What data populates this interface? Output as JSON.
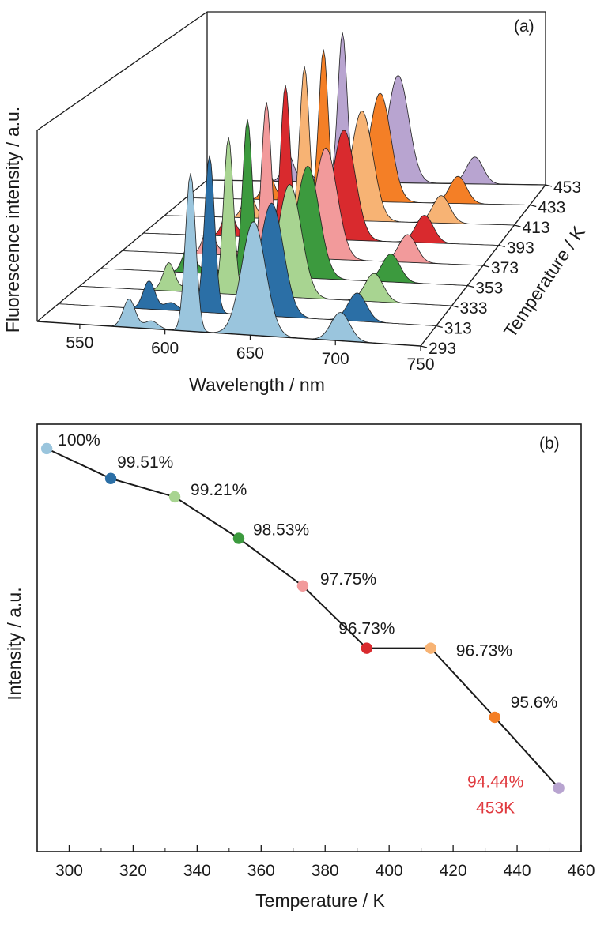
{
  "chart_data": [
    {
      "type": "area",
      "panel_label": "(a)",
      "xlabel": "Wavelength / nm",
      "ylabel": "Fluorescence intensity / a.u.",
      "zlabel": "Temperature / K",
      "xlim": [
        525,
        750
      ],
      "x_ticks": [
        "550",
        "600",
        "650",
        "700",
        "750"
      ],
      "z_ticks": [
        "293",
        "313",
        "333",
        "353",
        "373",
        "393",
        "413",
        "433",
        "453"
      ],
      "peaks_nm": [
        579,
        592,
        615,
        652,
        703
      ],
      "peak_intensity": [
        0.18,
        0.05,
        1.0,
        0.72,
        0.18
      ],
      "series": [
        {
          "name": "293",
          "color": "#9ac5dd",
          "scale": 1.0
        },
        {
          "name": "313",
          "color": "#2b6fa6",
          "scale": 0.9951
        },
        {
          "name": "333",
          "color": "#a8d491",
          "scale": 0.9921
        },
        {
          "name": "353",
          "color": "#3c9a3e",
          "scale": 0.9853
        },
        {
          "name": "373",
          "color": "#f29a9b",
          "scale": 0.9775
        },
        {
          "name": "393",
          "color": "#d92a2e",
          "scale": 0.9673
        },
        {
          "name": "413",
          "color": "#f7b374",
          "scale": 0.9673
        },
        {
          "name": "433",
          "color": "#f47f26",
          "scale": 0.956
        },
        {
          "name": "453",
          "color": "#b8a4d0",
          "scale": 0.9444
        }
      ]
    },
    {
      "type": "line",
      "panel_label": "(b)",
      "xlabel": "Temperature / K",
      "ylabel": "Intensity / a.u.",
      "xlim": [
        290,
        460
      ],
      "ylim": [
        93.4,
        100.4
      ],
      "x_ticks": [
        "300",
        "320",
        "340",
        "360",
        "380",
        "400",
        "420",
        "440",
        "460"
      ],
      "points": [
        {
          "x": 293,
          "y": 100.0,
          "label": "100%",
          "color": "#9ac5dd"
        },
        {
          "x": 313,
          "y": 99.51,
          "label": "99.51%",
          "color": "#2b6fa6"
        },
        {
          "x": 333,
          "y": 99.21,
          "label": "99.21%",
          "color": "#a8d491"
        },
        {
          "x": 353,
          "y": 98.53,
          "label": "98.53%",
          "color": "#3c9a3e"
        },
        {
          "x": 373,
          "y": 97.75,
          "label": "97.75%",
          "color": "#f29a9b"
        },
        {
          "x": 393,
          "y": 96.73,
          "label": "96.73%",
          "color": "#d92a2e"
        },
        {
          "x": 413,
          "y": 96.73,
          "label": "96.73%",
          "color": "#f7b374"
        },
        {
          "x": 433,
          "y": 95.6,
          "label": "95.6%",
          "color": "#f47f26"
        },
        {
          "x": 453,
          "y": 94.44,
          "label": "",
          "color": "#b8a4d0"
        }
      ],
      "highlight": {
        "value_text": "94.44%",
        "temp_text": "453K",
        "color": "#e0393e"
      }
    }
  ]
}
